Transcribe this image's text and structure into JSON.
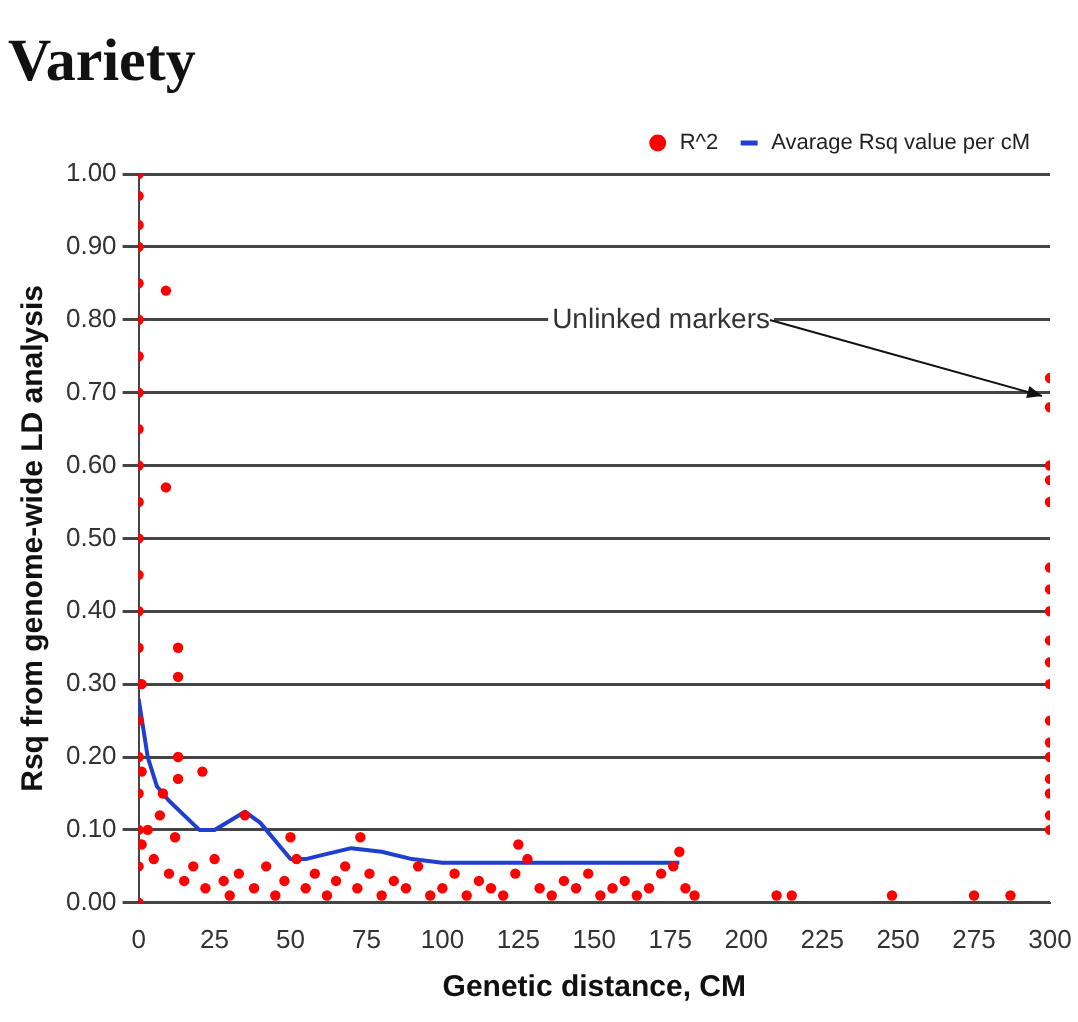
{
  "chart_data": {
    "type": "scatter",
    "title": "Variety",
    "xlabel": "Genetic distance, CM",
    "ylabel": "Rsq from genome-wide LD analysis",
    "annotations": [
      {
        "text": "Unlinked markers",
        "x": 300,
        "y": 0.69
      }
    ],
    "xlim": [
      0,
      300
    ],
    "xticks": [
      0,
      25,
      50,
      75,
      100,
      125,
      150,
      175,
      200,
      225,
      250,
      275,
      300
    ],
    "ylim": [
      0,
      1
    ],
    "yticks": [
      {
        "value": 0,
        "label": "0.00"
      },
      {
        "value": 0.1,
        "label": "0.10"
      },
      {
        "value": 0.2,
        "label": "0.20"
      },
      {
        "value": 0.3,
        "label": "0.30"
      },
      {
        "value": 0.4,
        "label": "0.40"
      },
      {
        "value": 0.5,
        "label": "0.50"
      },
      {
        "value": 0.6,
        "label": "0.60"
      },
      {
        "value": 0.7,
        "label": "0.70"
      },
      {
        "value": 0.8,
        "label": "0.80"
      },
      {
        "value": 0.9,
        "label": "0.90"
      },
      {
        "value": 1,
        "label": "1.00"
      }
    ],
    "grid": "y",
    "legend": "top right",
    "marker": "circle",
    "series": [
      {
        "name": "R^2",
        "type": "scatter",
        "color": "#ff0000",
        "x": [
          0,
          0,
          0,
          0,
          0,
          0,
          0,
          0,
          0,
          0,
          0,
          0,
          0,
          0,
          0,
          0,
          0,
          0,
          0,
          0,
          0,
          0,
          1,
          1,
          1,
          9,
          9,
          13,
          13,
          13,
          13,
          21,
          8,
          35,
          50,
          73,
          125,
          178,
          3,
          5,
          7,
          10,
          12,
          15,
          18,
          22,
          25,
          28,
          30,
          33,
          38,
          42,
          45,
          48,
          52,
          55,
          58,
          62,
          65,
          68,
          72,
          76,
          80,
          84,
          88,
          92,
          96,
          100,
          104,
          108,
          112,
          116,
          120,
          124,
          128,
          132,
          136,
          140,
          144,
          148,
          152,
          156,
          160,
          164,
          168,
          172,
          176,
          180,
          183,
          210,
          215,
          248,
          275,
          287,
          300,
          300,
          300,
          300,
          300,
          300,
          300,
          300,
          300,
          300,
          300,
          300,
          300,
          300,
          300,
          300,
          300,
          300
        ],
        "values": [
          1.0,
          0.97,
          0.93,
          0.9,
          0.85,
          0.8,
          0.75,
          0.7,
          0.65,
          0.6,
          0.55,
          0.5,
          0.45,
          0.4,
          0.35,
          0.3,
          0.25,
          0.2,
          0.15,
          0.1,
          0.05,
          0.0,
          0.3,
          0.18,
          0.08,
          0.84,
          0.57,
          0.35,
          0.31,
          0.2,
          0.17,
          0.18,
          0.15,
          0.12,
          0.09,
          0.09,
          0.08,
          0.07,
          0.1,
          0.06,
          0.12,
          0.04,
          0.09,
          0.03,
          0.05,
          0.02,
          0.06,
          0.03,
          0.01,
          0.04,
          0.02,
          0.05,
          0.01,
          0.03,
          0.06,
          0.02,
          0.04,
          0.01,
          0.03,
          0.05,
          0.02,
          0.04,
          0.01,
          0.03,
          0.02,
          0.05,
          0.01,
          0.02,
          0.04,
          0.01,
          0.03,
          0.02,
          0.01,
          0.04,
          0.06,
          0.02,
          0.01,
          0.03,
          0.02,
          0.04,
          0.01,
          0.02,
          0.03,
          0.01,
          0.02,
          0.04,
          0.05,
          0.02,
          0.01,
          0.01,
          0.01,
          0.01,
          0.01,
          0.01,
          0.72,
          0.68,
          0.6,
          0.58,
          0.55,
          0.46,
          0.43,
          0.4,
          0.36,
          0.33,
          0.3,
          0.25,
          0.22,
          0.2,
          0.17,
          0.15,
          0.12,
          0.1
        ]
      },
      {
        "name": "Avarage Rsq value per cM",
        "type": "line",
        "color": "#1f3fcf",
        "marker": "none",
        "line_style": "solid",
        "x": [
          0,
          3,
          6,
          10,
          15,
          20,
          25,
          35,
          40,
          50,
          55,
          60,
          70,
          80,
          90,
          100,
          125,
          150,
          178
        ],
        "values": [
          0.28,
          0.2,
          0.16,
          0.14,
          0.12,
          0.1,
          0.1,
          0.125,
          0.11,
          0.06,
          0.06,
          0.065,
          0.075,
          0.07,
          0.06,
          0.055,
          0.055,
          0.055,
          0.055
        ]
      }
    ]
  }
}
